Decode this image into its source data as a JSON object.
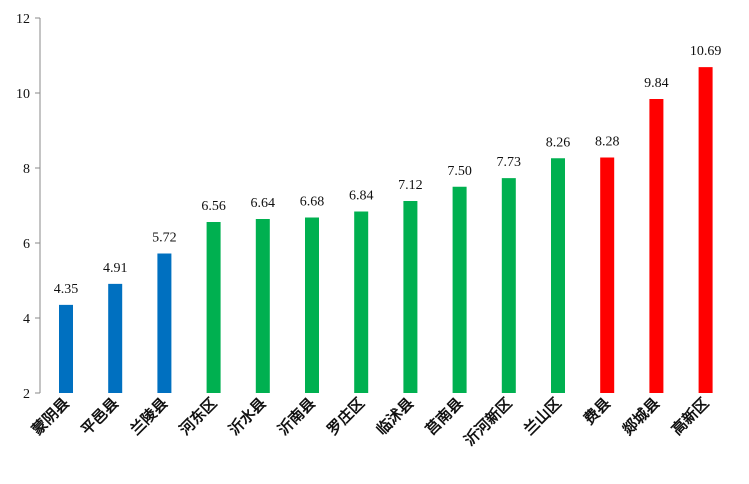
{
  "chart_data": {
    "type": "bar",
    "title": "",
    "xlabel": "",
    "ylabel": "",
    "ylim": [
      2,
      12
    ],
    "yticks": [
      2,
      4,
      6,
      8,
      10,
      12
    ],
    "grid": false,
    "categories": [
      "蒙阴县",
      "平邑县",
      "兰陵县",
      "河东区",
      "沂水县",
      "沂南县",
      "罗庄区",
      "临沭县",
      "莒南县",
      "沂河新区",
      "兰山区",
      "费县",
      "郯城县",
      "高新区"
    ],
    "values": [
      4.35,
      4.91,
      5.72,
      6.56,
      6.64,
      6.68,
      6.84,
      7.12,
      7.5,
      7.73,
      8.26,
      8.28,
      9.84,
      10.69
    ],
    "value_labels": [
      "4.35",
      "4.91",
      "5.72",
      "6.56",
      "6.64",
      "6.68",
      "6.84",
      "7.12",
      "7.50",
      "7.73",
      "8.26",
      "8.28",
      "9.84",
      "10.69"
    ],
    "colors": [
      "#0070c0",
      "#0070c0",
      "#0070c0",
      "#00b050",
      "#00b050",
      "#00b050",
      "#00b050",
      "#00b050",
      "#00b050",
      "#00b050",
      "#00b050",
      "#ff0000",
      "#ff0000",
      "#ff0000"
    ]
  }
}
